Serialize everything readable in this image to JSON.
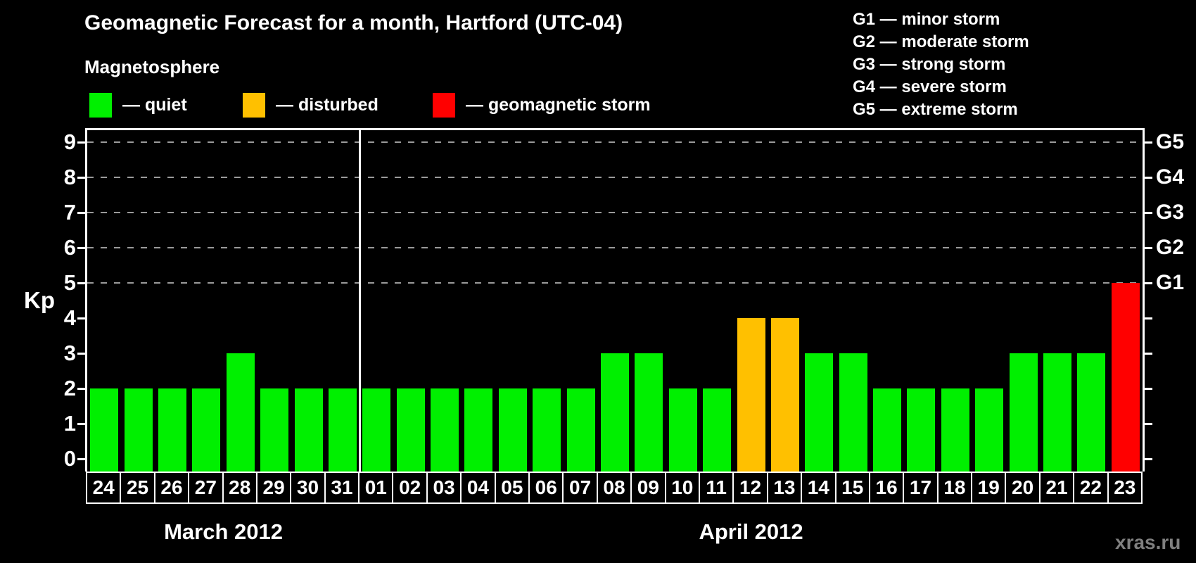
{
  "page": {
    "title": "Geomagnetic Forecast for a month, Hartford (UTC-04)",
    "subtitle": "Magnetosphere",
    "watermark": "xras.ru"
  },
  "colors": {
    "quiet": "#00f000",
    "disturbed": "#ffc000",
    "storm": "#ff0000",
    "axis": "#ffffff",
    "grid": "#9a9a9a",
    "background": "#000000",
    "watermark": "#7f7f7f"
  },
  "legend": {
    "items": [
      {
        "status": "quiet",
        "label": "— quiet"
      },
      {
        "status": "disturbed",
        "label": "— disturbed"
      },
      {
        "status": "storm",
        "label": "— geomagnetic storm"
      }
    ]
  },
  "g_scale_legend": [
    {
      "code": "G1",
      "label": "G1 — minor storm"
    },
    {
      "code": "G2",
      "label": "G2 — moderate storm"
    },
    {
      "code": "G3",
      "label": "G3 — strong storm"
    },
    {
      "code": "G4",
      "label": "G4 — severe storm"
    },
    {
      "code": "G5",
      "label": "G5 — extreme storm"
    }
  ],
  "chart_data": {
    "type": "bar",
    "ylabel": "Kp",
    "ylim": [
      0,
      9
    ],
    "yticks": [
      0,
      1,
      2,
      3,
      4,
      5,
      6,
      7,
      8,
      9
    ],
    "gridlines_at_kp": [
      5,
      6,
      7,
      8,
      9
    ],
    "grid": "dashed horizontal at storm levels only",
    "right_axis": [
      {
        "kp": 5,
        "label": "G1"
      },
      {
        "kp": 6,
        "label": "G2"
      },
      {
        "kp": 7,
        "label": "G3"
      },
      {
        "kp": 8,
        "label": "G4"
      },
      {
        "kp": 9,
        "label": "G5"
      }
    ],
    "months": [
      {
        "label": "March 2012",
        "start_index": 0,
        "count": 8
      },
      {
        "label": "April 2012",
        "start_index": 8,
        "count": 23
      }
    ],
    "bars": [
      {
        "month": "March 2012",
        "day": "24",
        "kp": 2,
        "status": "quiet"
      },
      {
        "month": "March 2012",
        "day": "25",
        "kp": 2,
        "status": "quiet"
      },
      {
        "month": "March 2012",
        "day": "26",
        "kp": 2,
        "status": "quiet"
      },
      {
        "month": "March 2012",
        "day": "27",
        "kp": 2,
        "status": "quiet"
      },
      {
        "month": "March 2012",
        "day": "28",
        "kp": 3,
        "status": "quiet"
      },
      {
        "month": "March 2012",
        "day": "29",
        "kp": 2,
        "status": "quiet"
      },
      {
        "month": "March 2012",
        "day": "30",
        "kp": 2,
        "status": "quiet"
      },
      {
        "month": "March 2012",
        "day": "31",
        "kp": 2,
        "status": "quiet"
      },
      {
        "month": "April 2012",
        "day": "01",
        "kp": 2,
        "status": "quiet"
      },
      {
        "month": "April 2012",
        "day": "02",
        "kp": 2,
        "status": "quiet"
      },
      {
        "month": "April 2012",
        "day": "03",
        "kp": 2,
        "status": "quiet"
      },
      {
        "month": "April 2012",
        "day": "04",
        "kp": 2,
        "status": "quiet"
      },
      {
        "month": "April 2012",
        "day": "05",
        "kp": 2,
        "status": "quiet"
      },
      {
        "month": "April 2012",
        "day": "06",
        "kp": 2,
        "status": "quiet"
      },
      {
        "month": "April 2012",
        "day": "07",
        "kp": 2,
        "status": "quiet"
      },
      {
        "month": "April 2012",
        "day": "08",
        "kp": 3,
        "status": "quiet"
      },
      {
        "month": "April 2012",
        "day": "09",
        "kp": 3,
        "status": "quiet"
      },
      {
        "month": "April 2012",
        "day": "10",
        "kp": 2,
        "status": "quiet"
      },
      {
        "month": "April 2012",
        "day": "11",
        "kp": 2,
        "status": "quiet"
      },
      {
        "month": "April 2012",
        "day": "12",
        "kp": 4,
        "status": "disturbed"
      },
      {
        "month": "April 2012",
        "day": "13",
        "kp": 4,
        "status": "disturbed"
      },
      {
        "month": "April 2012",
        "day": "14",
        "kp": 3,
        "status": "quiet"
      },
      {
        "month": "April 2012",
        "day": "15",
        "kp": 3,
        "status": "quiet"
      },
      {
        "month": "April 2012",
        "day": "16",
        "kp": 2,
        "status": "quiet"
      },
      {
        "month": "April 2012",
        "day": "17",
        "kp": 2,
        "status": "quiet"
      },
      {
        "month": "April 2012",
        "day": "18",
        "kp": 2,
        "status": "quiet"
      },
      {
        "month": "April 2012",
        "day": "19",
        "kp": 2,
        "status": "quiet"
      },
      {
        "month": "April 2012",
        "day": "20",
        "kp": 3,
        "status": "quiet"
      },
      {
        "month": "April 2012",
        "day": "21",
        "kp": 3,
        "status": "quiet"
      },
      {
        "month": "April 2012",
        "day": "22",
        "kp": 3,
        "status": "quiet"
      },
      {
        "month": "April 2012",
        "day": "23",
        "kp": 5,
        "status": "storm"
      }
    ]
  }
}
